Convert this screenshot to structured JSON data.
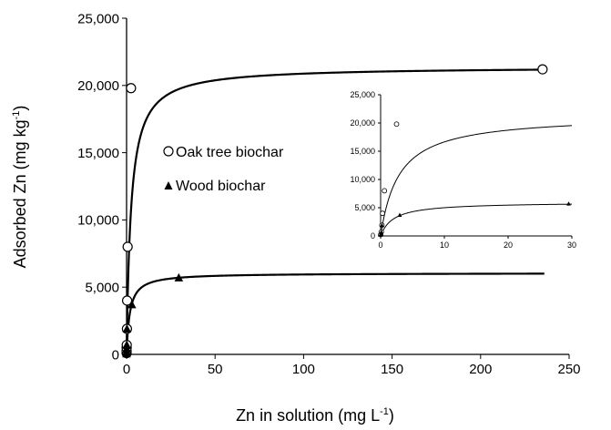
{
  "chart_data": [
    {
      "type": "scatter",
      "title": "",
      "xlabel": {
        "base": "Zn in solution (mg L",
        "sup": "-1",
        "end": ")"
      },
      "ylabel": {
        "base": "Adsorbed Zn (mg kg",
        "sup": "-1",
        "end": ")"
      },
      "xlim": [
        0,
        250
      ],
      "ylim": [
        0,
        25000
      ],
      "xticks": [
        0,
        50,
        100,
        150,
        200,
        250
      ],
      "yticks": [
        0,
        5000,
        10000,
        15000,
        20000,
        25000
      ],
      "xtick_labels": [
        "0",
        "50",
        "100",
        "150",
        "200",
        "250"
      ],
      "ytick_labels": [
        "0",
        "5,000",
        "10,000",
        "15,000",
        "20,000",
        "25,000"
      ],
      "grid": false,
      "legend_position": "center-left",
      "series": [
        {
          "name": "Oak tree biochar",
          "marker": "open-circle",
          "points": [
            [
              0.01,
              100
            ],
            [
              0.02,
              250
            ],
            [
              0.05,
              500
            ],
            [
              0.1,
              700
            ],
            [
              0.2,
              1900
            ],
            [
              0.3,
              4000
            ],
            [
              0.6,
              8000
            ],
            [
              2.5,
              19800
            ],
            [
              235,
              21200
            ]
          ],
          "fit": {
            "model": "langmuir",
            "qmax": 21400,
            "k": 0.4,
            "x_range": [
              0,
              236
            ]
          }
        },
        {
          "name": "Wood biochar",
          "marker": "filled-triangle",
          "points": [
            [
              0.01,
              50
            ],
            [
              0.02,
              200
            ],
            [
              0.05,
              400
            ],
            [
              0.1,
              700
            ],
            [
              0.2,
              1900
            ],
            [
              3.0,
              3700
            ],
            [
              29.5,
              5700
            ]
          ],
          "fit": {
            "model": "langmuir",
            "qmax": 6050,
            "k": 0.55,
            "x_range": [
              0,
              236
            ]
          }
        }
      ]
    },
    {
      "type": "scatter",
      "title": "",
      "inset": true,
      "xlim": [
        0,
        30
      ],
      "ylim": [
        0,
        25000
      ],
      "xticks": [
        0,
        10,
        20,
        30
      ],
      "yticks": [
        0,
        5000,
        10000,
        15000,
        20000,
        25000
      ],
      "xtick_labels": [
        "0",
        "10",
        "20",
        "30"
      ],
      "ytick_labels": [
        "0",
        "5,000",
        "10,000",
        "15,000",
        "20,000",
        "25,000"
      ],
      "series": [
        {
          "name": "Oak tree biochar",
          "marker": "open-circle",
          "points": [
            [
              0.02,
              250
            ],
            [
              0.1,
              700
            ],
            [
              0.2,
              1900
            ],
            [
              0.3,
              4000
            ],
            [
              0.6,
              8000
            ],
            [
              2.5,
              19800
            ]
          ],
          "fit": {
            "model": "langmuir",
            "qmax": 21400,
            "k": 0.35,
            "x_range": [
              0,
              30
            ]
          }
        },
        {
          "name": "Wood biochar",
          "marker": "filled-triangle",
          "points": [
            [
              0.02,
              200
            ],
            [
              0.05,
              400
            ],
            [
              0.1,
              700
            ],
            [
              0.2,
              1900
            ],
            [
              3.0,
              3700
            ],
            [
              29.5,
              5700
            ]
          ],
          "fit": {
            "model": "langmuir",
            "qmax": 6000,
            "k": 0.5,
            "x_range": [
              0,
              30
            ]
          }
        }
      ]
    }
  ],
  "legend": {
    "items": [
      {
        "label": "Oak tree biochar",
        "marker": "open-circle"
      },
      {
        "label": "Wood biochar",
        "marker": "filled-triangle"
      }
    ]
  }
}
